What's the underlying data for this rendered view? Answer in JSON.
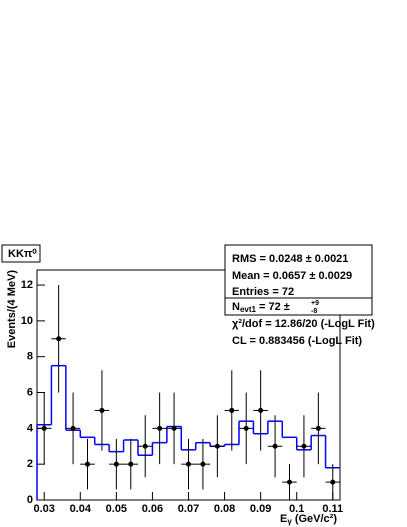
{
  "chart_data": {
    "type": "histogram-fit",
    "title": "KKπ⁰",
    "x_label": {
      "main": "E",
      "sub": "γ",
      "rest": " (GeV/c²)"
    },
    "y_label": "Events/(4 MeV)",
    "x": [
      0.03,
      0.034,
      0.038,
      0.042,
      0.046,
      0.05,
      0.054,
      0.058,
      0.062,
      0.066,
      0.07,
      0.074,
      0.078,
      0.082,
      0.086,
      0.09,
      0.094,
      0.098,
      0.102,
      0.106,
      0.11
    ],
    "bin_width": 0.004,
    "series": [
      {
        "name": "data",
        "color": "#000000",
        "values": [
          4,
          9,
          4,
          2,
          5,
          2,
          2,
          3,
          4,
          4,
          2,
          2,
          3,
          5,
          4,
          5,
          3,
          1,
          3,
          4,
          1
        ],
        "errors": [
          2,
          3,
          2,
          1.41,
          2.24,
          1.41,
          1.41,
          1.73,
          2,
          2,
          1.41,
          1.41,
          1.73,
          2.24,
          2,
          2.24,
          1.73,
          1,
          1.73,
          2,
          1
        ]
      },
      {
        "name": "fit",
        "color": "#0000ff",
        "values": [
          4.2,
          7.5,
          3.9,
          3.5,
          3.1,
          2.7,
          3.35,
          2.5,
          3.2,
          4.1,
          2.8,
          3.2,
          3.0,
          3.1,
          4.4,
          3.7,
          4.4,
          3.5,
          2.8,
          3.6,
          1.8
        ]
      }
    ],
    "xlim": [
      0.028,
      0.112
    ],
    "xticks": [
      {
        "value": 0.03,
        "label": "0.03"
      },
      {
        "value": 0.04,
        "label": "0.04"
      },
      {
        "value": 0.05,
        "label": "0.05"
      },
      {
        "value": 0.06,
        "label": "0.06"
      },
      {
        "value": 0.07,
        "label": "0.07"
      },
      {
        "value": 0.08,
        "label": "0.08"
      },
      {
        "value": 0.09,
        "label": "0.09"
      },
      0.1,
      0.11
    ],
    "ylim": [
      0,
      12.84
    ],
    "yticks": [
      0,
      2,
      4,
      6,
      8,
      10,
      12
    ],
    "stats": [
      "RMS =  0.0248 ± 0.0021",
      "Mean =  0.0657 ± 0.0029",
      "Entries =  72"
    ],
    "nevt": {
      "label": "N",
      "sub": "evt1",
      "value": " =  72 ± ",
      "up": "+9",
      "down": "-8"
    },
    "annotations": [
      "χ²/dof = 12.86/20 (-LogL Fit)",
      "CL = 0.883456 (-LogL Fit)"
    ]
  }
}
